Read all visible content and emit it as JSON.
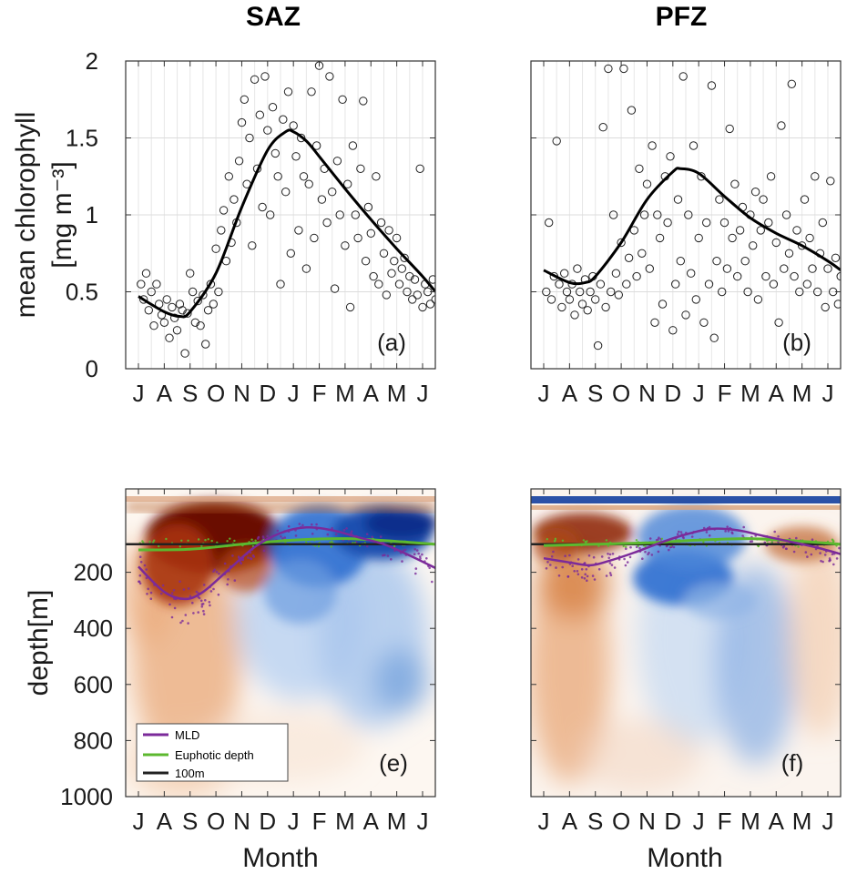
{
  "chart_data": [
    {
      "id": "a",
      "type": "scatter",
      "title": "SAZ",
      "ylabel_line1": "mean chlorophyll",
      "ylabel_line2": "[mg m⁻³]",
      "xlabel": "",
      "panel_label": "(a)",
      "x_ticks": [
        "J",
        "A",
        "S",
        "O",
        "N",
        "D",
        "J",
        "F",
        "M",
        "A",
        "M",
        "J"
      ],
      "y_ticks": [
        "0",
        "0.5",
        "1",
        "1.5",
        "2"
      ],
      "ylim": [
        0,
        2
      ],
      "grid": true,
      "smooth_curve": {
        "x": [
          0,
          1,
          1.6,
          2,
          3,
          4,
          5,
          5.7,
          6,
          6.5,
          7,
          8,
          9,
          10,
          11,
          11.5
        ],
        "y": [
          0.47,
          0.37,
          0.34,
          0.37,
          0.62,
          1.05,
          1.42,
          1.54,
          1.54,
          1.48,
          1.38,
          1.17,
          0.97,
          0.78,
          0.6,
          0.5
        ]
      },
      "scatter_points": [
        [
          0.1,
          0.55
        ],
        [
          0.2,
          0.45
        ],
        [
          0.3,
          0.62
        ],
        [
          0.4,
          0.38
        ],
        [
          0.5,
          0.5
        ],
        [
          0.6,
          0.28
        ],
        [
          0.7,
          0.55
        ],
        [
          0.8,
          0.42
        ],
        [
          0.9,
          0.35
        ],
        [
          1.0,
          0.3
        ],
        [
          1.1,
          0.45
        ],
        [
          1.2,
          0.2
        ],
        [
          1.3,
          0.4
        ],
        [
          1.4,
          0.33
        ],
        [
          1.5,
          0.25
        ],
        [
          1.6,
          0.42
        ],
        [
          1.7,
          0.38
        ],
        [
          1.8,
          0.1
        ],
        [
          1.9,
          0.36
        ],
        [
          2.0,
          0.62
        ],
        [
          2.1,
          0.5
        ],
        [
          2.2,
          0.3
        ],
        [
          2.3,
          0.44
        ],
        [
          2.4,
          0.28
        ],
        [
          2.5,
          0.48
        ],
        [
          2.6,
          0.16
        ],
        [
          2.7,
          0.38
        ],
        [
          2.8,
          0.55
        ],
        [
          2.9,
          0.42
        ],
        [
          3.0,
          0.78
        ],
        [
          3.1,
          0.5
        ],
        [
          3.2,
          0.9
        ],
        [
          3.3,
          1.03
        ],
        [
          3.4,
          0.7
        ],
        [
          3.5,
          1.25
        ],
        [
          3.6,
          0.82
        ],
        [
          3.7,
          1.1
        ],
        [
          3.8,
          0.95
        ],
        [
          3.9,
          1.35
        ],
        [
          4.0,
          1.6
        ],
        [
          4.1,
          1.75
        ],
        [
          4.2,
          1.2
        ],
        [
          4.3,
          1.5
        ],
        [
          4.4,
          0.8
        ],
        [
          4.5,
          1.88
        ],
        [
          4.6,
          1.3
        ],
        [
          4.7,
          1.65
        ],
        [
          4.8,
          1.05
        ],
        [
          4.9,
          1.9
        ],
        [
          5.0,
          1.55
        ],
        [
          5.1,
          1.0
        ],
        [
          5.2,
          1.7
        ],
        [
          5.3,
          1.4
        ],
        [
          5.4,
          1.25
        ],
        [
          5.5,
          0.55
        ],
        [
          5.6,
          1.62
        ],
        [
          5.7,
          1.15
        ],
        [
          5.8,
          1.8
        ],
        [
          5.9,
          0.75
        ],
        [
          6.0,
          1.58
        ],
        [
          6.1,
          1.38
        ],
        [
          6.2,
          0.9
        ],
        [
          6.3,
          1.5
        ],
        [
          6.4,
          1.25
        ],
        [
          6.5,
          0.65
        ],
        [
          6.6,
          1.2
        ],
        [
          6.7,
          1.8
        ],
        [
          6.8,
          0.85
        ],
        [
          6.9,
          1.45
        ],
        [
          7.0,
          1.97
        ],
        [
          7.1,
          1.1
        ],
        [
          7.2,
          1.3
        ],
        [
          7.3,
          0.95
        ],
        [
          7.4,
          1.9
        ],
        [
          7.5,
          1.15
        ],
        [
          7.6,
          0.52
        ],
        [
          7.7,
          1.35
        ],
        [
          7.8,
          1.0
        ],
        [
          7.9,
          1.75
        ],
        [
          8.0,
          0.8
        ],
        [
          8.1,
          1.2
        ],
        [
          8.2,
          0.4
        ],
        [
          8.3,
          1.45
        ],
        [
          8.4,
          1.0
        ],
        [
          8.5,
          0.85
        ],
        [
          8.6,
          1.3
        ],
        [
          8.7,
          1.74
        ],
        [
          8.8,
          0.7
        ],
        [
          8.9,
          1.05
        ],
        [
          9.0,
          0.88
        ],
        [
          9.1,
          0.6
        ],
        [
          9.2,
          1.25
        ],
        [
          9.3,
          0.55
        ],
        [
          9.4,
          0.95
        ],
        [
          9.5,
          0.75
        ],
        [
          9.6,
          0.48
        ],
        [
          9.7,
          0.9
        ],
        [
          9.8,
          0.62
        ],
        [
          9.9,
          0.7
        ],
        [
          10.0,
          0.85
        ],
        [
          10.1,
          0.55
        ],
        [
          10.2,
          0.65
        ],
        [
          10.3,
          0.72
        ],
        [
          10.4,
          0.5
        ],
        [
          10.5,
          0.6
        ],
        [
          10.6,
          0.45
        ],
        [
          10.7,
          0.58
        ],
        [
          10.8,
          0.48
        ],
        [
          10.9,
          1.3
        ],
        [
          11.0,
          0.4
        ],
        [
          11.1,
          0.55
        ],
        [
          11.2,
          0.5
        ],
        [
          11.3,
          0.42
        ],
        [
          11.4,
          0.58
        ],
        [
          11.5,
          0.45
        ]
      ]
    },
    {
      "id": "b",
      "type": "scatter",
      "title": "PFZ",
      "xlabel": "",
      "panel_label": "(b)",
      "x_ticks": [
        "J",
        "A",
        "S",
        "O",
        "N",
        "D",
        "J",
        "F",
        "M",
        "A",
        "M",
        "J"
      ],
      "ylim": [
        0,
        2
      ],
      "grid": true,
      "smooth_curve": {
        "x": [
          0,
          1,
          1.6,
          2,
          3,
          4,
          5,
          5.3,
          6,
          7,
          8,
          9,
          10,
          11,
          11.5
        ],
        "y": [
          0.64,
          0.56,
          0.56,
          0.6,
          0.82,
          1.1,
          1.28,
          1.3,
          1.27,
          1.12,
          0.98,
          0.88,
          0.8,
          0.7,
          0.64
        ]
      },
      "scatter_points": [
        [
          0.1,
          0.5
        ],
        [
          0.2,
          0.95
        ],
        [
          0.3,
          0.45
        ],
        [
          0.4,
          0.6
        ],
        [
          0.5,
          1.48
        ],
        [
          0.6,
          0.55
        ],
        [
          0.7,
          0.4
        ],
        [
          0.8,
          0.62
        ],
        [
          0.9,
          0.5
        ],
        [
          1.0,
          0.45
        ],
        [
          1.1,
          0.55
        ],
        [
          1.2,
          0.35
        ],
        [
          1.3,
          0.65
        ],
        [
          1.4,
          0.5
        ],
        [
          1.5,
          0.42
        ],
        [
          1.6,
          0.58
        ],
        [
          1.7,
          0.38
        ],
        [
          1.8,
          0.5
        ],
        [
          1.9,
          0.6
        ],
        [
          2.0,
          0.45
        ],
        [
          2.1,
          0.15
        ],
        [
          2.2,
          0.55
        ],
        [
          2.3,
          1.57
        ],
        [
          2.4,
          0.4
        ],
        [
          2.5,
          1.95
        ],
        [
          2.6,
          0.5
        ],
        [
          2.7,
          1.0
        ],
        [
          2.8,
          0.62
        ],
        [
          2.9,
          0.48
        ],
        [
          3.0,
          0.82
        ],
        [
          3.1,
          1.95
        ],
        [
          3.2,
          0.55
        ],
        [
          3.3,
          0.72
        ],
        [
          3.4,
          1.68
        ],
        [
          3.5,
          0.9
        ],
        [
          3.6,
          0.6
        ],
        [
          3.7,
          1.3
        ],
        [
          3.8,
          0.75
        ],
        [
          3.9,
          1.0
        ],
        [
          4.0,
          1.2
        ],
        [
          4.1,
          0.65
        ],
        [
          4.2,
          1.45
        ],
        [
          4.3,
          0.3
        ],
        [
          4.4,
          1.0
        ],
        [
          4.5,
          0.85
        ],
        [
          4.6,
          0.42
        ],
        [
          4.7,
          1.25
        ],
        [
          4.8,
          0.95
        ],
        [
          4.9,
          1.38
        ],
        [
          5.0,
          0.25
        ],
        [
          5.1,
          0.55
        ],
        [
          5.2,
          1.1
        ],
        [
          5.3,
          0.7
        ],
        [
          5.4,
          1.9
        ],
        [
          5.5,
          0.35
        ],
        [
          5.6,
          1.0
        ],
        [
          5.7,
          0.62
        ],
        [
          5.8,
          1.45
        ],
        [
          5.9,
          0.45
        ],
        [
          6.0,
          0.85
        ],
        [
          6.1,
          1.25
        ],
        [
          6.2,
          0.3
        ],
        [
          6.3,
          0.95
        ],
        [
          6.4,
          0.55
        ],
        [
          6.5,
          1.84
        ],
        [
          6.6,
          0.2
        ],
        [
          6.7,
          0.7
        ],
        [
          6.8,
          1.1
        ],
        [
          6.9,
          0.5
        ],
        [
          7.0,
          0.95
        ],
        [
          7.1,
          0.65
        ],
        [
          7.2,
          1.56
        ],
        [
          7.3,
          0.85
        ],
        [
          7.4,
          1.2
        ],
        [
          7.5,
          0.6
        ],
        [
          7.6,
          0.9
        ],
        [
          7.7,
          1.05
        ],
        [
          7.8,
          0.7
        ],
        [
          7.9,
          0.5
        ],
        [
          8.0,
          1.0
        ],
        [
          8.1,
          0.8
        ],
        [
          8.2,
          1.15
        ],
        [
          8.3,
          0.45
        ],
        [
          8.4,
          0.9
        ],
        [
          8.5,
          1.1
        ],
        [
          8.6,
          0.6
        ],
        [
          8.7,
          0.95
        ],
        [
          8.8,
          1.25
        ],
        [
          8.9,
          0.55
        ],
        [
          9.0,
          0.82
        ],
        [
          9.1,
          0.3
        ],
        [
          9.2,
          1.58
        ],
        [
          9.3,
          0.65
        ],
        [
          9.4,
          1.0
        ],
        [
          9.5,
          0.75
        ],
        [
          9.6,
          1.85
        ],
        [
          9.7,
          0.6
        ],
        [
          9.8,
          0.9
        ],
        [
          9.9,
          0.5
        ],
        [
          10.0,
          0.8
        ],
        [
          10.1,
          1.1
        ],
        [
          10.2,
          0.55
        ],
        [
          10.3,
          0.85
        ],
        [
          10.4,
          0.65
        ],
        [
          10.5,
          1.25
        ],
        [
          10.6,
          0.5
        ],
        [
          10.7,
          0.75
        ],
        [
          10.8,
          0.95
        ],
        [
          10.9,
          0.4
        ],
        [
          11.0,
          0.65
        ],
        [
          11.1,
          1.22
        ],
        [
          11.2,
          0.5
        ],
        [
          11.3,
          0.72
        ],
        [
          11.4,
          0.42
        ],
        [
          11.5,
          0.6
        ]
      ]
    },
    {
      "id": "e",
      "type": "heatmap",
      "xlabel": "Month",
      "ylabel": "depth[m]",
      "panel_label": "(e)",
      "x_ticks": [
        "J",
        "A",
        "S",
        "O",
        "N",
        "D",
        "J",
        "F",
        "M",
        "A",
        "M",
        "J"
      ],
      "y_ticks": [
        "200",
        "400",
        "600",
        "800",
        "1000"
      ],
      "ylim": [
        1000,
        0
      ],
      "colors": {
        "warm_dark": "#6b0b00",
        "warm": "#d17a3a",
        "warm_light": "#f2c8a6",
        "cool_dark": "#0a2f8c",
        "cool": "#2f6fd0",
        "cool_light": "#bcd4f2"
      },
      "legend": [
        {
          "label": "MLD",
          "color": "#7b2a9a"
        },
        {
          "label": "Euphotic depth",
          "color": "#5cb82f"
        },
        {
          "label": "100m",
          "color": "#222222"
        }
      ],
      "mld": {
        "x": [
          0,
          1,
          1.8,
          2.5,
          3.5,
          4.5,
          5.5,
          6.5,
          7.5,
          8.5,
          9.5,
          10.5,
          11.5
        ],
        "y": [
          180,
          270,
          295,
          270,
          190,
          110,
          60,
          40,
          50,
          75,
          100,
          140,
          185
        ]
      },
      "euphotic_depth": {
        "x": [
          0,
          2,
          4,
          6,
          8,
          10,
          11.5
        ],
        "y": [
          120,
          118,
          100,
          85,
          80,
          90,
          100
        ]
      },
      "line_100m": 100
    },
    {
      "id": "f",
      "type": "heatmap",
      "xlabel": "Month",
      "panel_label": "(f)",
      "x_ticks": [
        "J",
        "A",
        "S",
        "O",
        "N",
        "D",
        "J",
        "F",
        "M",
        "A",
        "M",
        "J"
      ],
      "ylim": [
        1000,
        0
      ],
      "mld": {
        "x": [
          0,
          1,
          1.8,
          2.5,
          3.5,
          4.5,
          5.5,
          6.5,
          7.5,
          8.5,
          9.5,
          10.5,
          11.5
        ],
        "y": [
          150,
          165,
          175,
          160,
          130,
          95,
          65,
          45,
          50,
          70,
          90,
          110,
          135
        ]
      },
      "euphotic_depth": {
        "x": [
          0,
          2,
          4,
          6,
          8,
          10,
          11.5
        ],
        "y": [
          105,
          100,
          95,
          85,
          80,
          90,
          100
        ]
      },
      "line_100m": 100
    }
  ]
}
